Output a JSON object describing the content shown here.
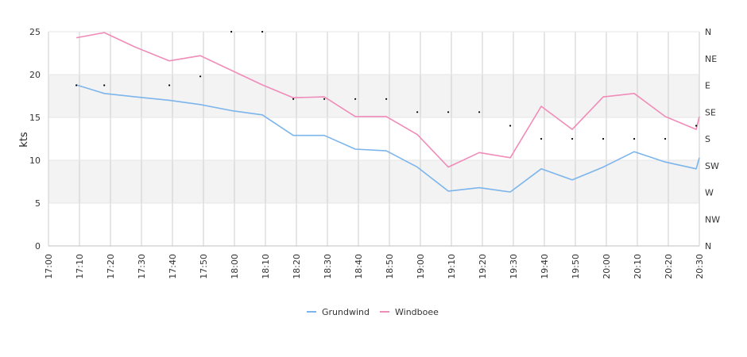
{
  "chart_data": {
    "type": "line",
    "title": "",
    "xlabel": "",
    "ylabel": "kts",
    "ylim": [
      0,
      25
    ],
    "y_ticks": [
      0,
      5,
      10,
      15,
      20,
      25
    ],
    "x_ticks": [
      "17:00",
      "17:10",
      "17:20",
      "17:30",
      "17:40",
      "17:50",
      "18:00",
      "18:10",
      "18:20",
      "18:30",
      "18:40",
      "18:50",
      "19:00",
      "19:10",
      "19:20",
      "19:30",
      "19:40",
      "19:50",
      "20:00",
      "20:10",
      "20:20",
      "20:30"
    ],
    "x_range_minutes": [
      0,
      210
    ],
    "right_axis": {
      "label": "",
      "ticks": [
        "N",
        "NW",
        "W",
        "SW",
        "S",
        "SE",
        "E",
        "NE",
        "N"
      ],
      "range_degrees": [
        0,
        360
      ]
    },
    "bands": [
      [
        5,
        10
      ],
      [
        15,
        20
      ]
    ],
    "colors": {
      "Grundwind": "#7cb5ec",
      "Windboee": "#f08cb8",
      "direction": "#000000",
      "band": "#f3f3f3",
      "grid": "#cccccc"
    },
    "legend_position": "bottom-center",
    "series": [
      {
        "name": "Grundwind",
        "x_minutes": [
          9,
          18,
          28,
          39,
          49,
          59,
          69,
          79,
          89,
          99,
          109,
          119,
          129,
          139,
          149,
          159,
          169,
          179,
          189,
          199,
          209,
          210
        ],
        "values": [
          18.8,
          17.8,
          17.4,
          17.0,
          16.5,
          15.8,
          15.3,
          12.9,
          12.9,
          11.3,
          11.1,
          9.2,
          6.4,
          6.8,
          6.3,
          9.0,
          7.7,
          9.2,
          11.0,
          9.8,
          9.0,
          10.3
        ]
      },
      {
        "name": "Windboee",
        "x_minutes": [
          9,
          18,
          28,
          39,
          49,
          59,
          69,
          79,
          89,
          99,
          109,
          119,
          129,
          139,
          149,
          159,
          169,
          179,
          189,
          199,
          209,
          210
        ],
        "values": [
          24.3,
          24.9,
          23.2,
          21.6,
          22.2,
          20.5,
          18.8,
          17.3,
          17.4,
          15.1,
          15.1,
          13.0,
          9.2,
          10.9,
          10.3,
          16.3,
          13.6,
          17.4,
          17.8,
          15.1,
          13.6,
          15.1
        ]
      },
      {
        "name": "direction",
        "x_minutes": [
          9,
          18,
          39,
          49,
          59,
          69,
          79,
          89,
          99,
          109,
          119,
          129,
          139,
          149,
          159,
          169,
          179,
          189,
          199,
          209
        ],
        "values_degrees": [
          270,
          270,
          270,
          285,
          360,
          360,
          247,
          247,
          247,
          247,
          225,
          225,
          225,
          202,
          180,
          180,
          180,
          180,
          180,
          202
        ]
      }
    ]
  }
}
